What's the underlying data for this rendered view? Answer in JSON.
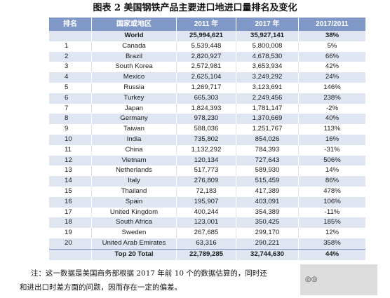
{
  "title": "图表 2  美国钢铁产品主要进口地进口量排名及变化",
  "headers": [
    "排名",
    "国家或地区",
    "2011 年",
    "2017 年",
    "2017/2011"
  ],
  "world": {
    "rank": "",
    "name": "World",
    "y2011": "25,994,621",
    "y2017": "35,927,141",
    "change": "38%"
  },
  "rows": [
    {
      "rank": "1",
      "name": "Canada",
      "y2011": "5,539,448",
      "y2017": "5,800,008",
      "change": "5%"
    },
    {
      "rank": "2",
      "name": "Brazil",
      "y2011": "2,820,927",
      "y2017": "4,678,530",
      "change": "66%"
    },
    {
      "rank": "3",
      "name": "South Korea",
      "y2011": "2,572,981",
      "y2017": "3,653,934",
      "change": "42%"
    },
    {
      "rank": "4",
      "name": "Mexico",
      "y2011": "2,625,104",
      "y2017": "3,249,292",
      "change": "24%"
    },
    {
      "rank": "5",
      "name": "Russia",
      "y2011": "1,269,717",
      "y2017": "3,123,691",
      "change": "146%"
    },
    {
      "rank": "6",
      "name": "Turkey",
      "y2011": "665,303",
      "y2017": "2,249,456",
      "change": "238%"
    },
    {
      "rank": "7",
      "name": "Japan",
      "y2011": "1,824,393",
      "y2017": "1,781,147",
      "change": "-2%"
    },
    {
      "rank": "8",
      "name": "Germany",
      "y2011": "978,230",
      "y2017": "1,370,669",
      "change": "40%"
    },
    {
      "rank": "9",
      "name": "Taiwan",
      "y2011": "588,036",
      "y2017": "1,251,767",
      "change": "113%"
    },
    {
      "rank": "10",
      "name": "India",
      "y2011": "735,802",
      "y2017": "854,026",
      "change": "16%"
    },
    {
      "rank": "11",
      "name": "China",
      "y2011": "1,132,292",
      "y2017": "784,393",
      "change": "-31%"
    },
    {
      "rank": "12",
      "name": "Vietnam",
      "y2011": "120,134",
      "y2017": "727,643",
      "change": "506%"
    },
    {
      "rank": "13",
      "name": "Netherlands",
      "y2011": "517,773",
      "y2017": "589,930",
      "change": "14%"
    },
    {
      "rank": "14",
      "name": "Italy",
      "y2011": "276,809",
      "y2017": "515,459",
      "change": "86%"
    },
    {
      "rank": "15",
      "name": "Thailand",
      "y2011": "72,183",
      "y2017": "417,389",
      "change": "478%"
    },
    {
      "rank": "16",
      "name": "Spain",
      "y2011": "195,907",
      "y2017": "403,091",
      "change": "106%"
    },
    {
      "rank": "17",
      "name": "United Kingdom",
      "y2011": "400,244",
      "y2017": "354,389",
      "change": "-11%"
    },
    {
      "rank": "18",
      "name": "South Africa",
      "y2011": "123,001",
      "y2017": "350,425",
      "change": "185%"
    },
    {
      "rank": "19",
      "name": "Sweden",
      "y2011": "267,685",
      "y2017": "299,170",
      "change": "12%"
    },
    {
      "rank": "20",
      "name": "United Arab Emirates",
      "y2011": "63,316",
      "y2017": "290,221",
      "change": "358%"
    }
  ],
  "total": {
    "rank": "",
    "name": "Top 20 Total",
    "y2011": "22,789,285",
    "y2017": "32,744,630",
    "change": "44%"
  },
  "note": {
    "line1": "注：这一数据是美国商务部根据 2017 年前 10 个的数据估算的，同时还",
    "line2": "和进出口时差方面的问题，因而存在一定的偏差。"
  },
  "header_color": "#7f98c7",
  "band_color": "#dfe5f1"
}
